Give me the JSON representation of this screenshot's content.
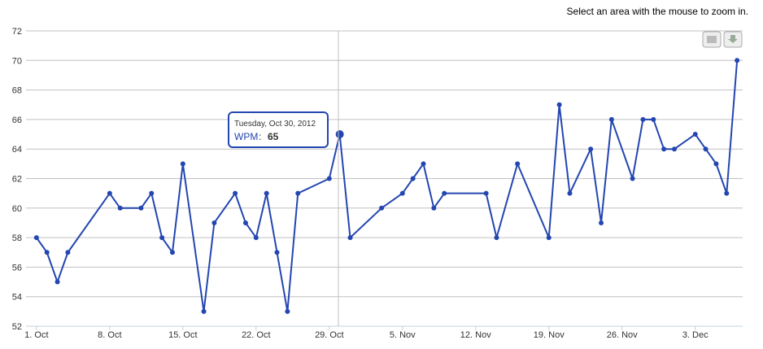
{
  "chart_data": {
    "type": "line",
    "subtitle": "Select an area with the mouse to zoom in.",
    "x": [
      "2012-10-01",
      "2012-10-02",
      "2012-10-03",
      "2012-10-04",
      "2012-10-08",
      "2012-10-09",
      "2012-10-11",
      "2012-10-12",
      "2012-10-13",
      "2012-10-14",
      "2012-10-15",
      "2012-10-17",
      "2012-10-18",
      "2012-10-20",
      "2012-10-21",
      "2012-10-22",
      "2012-10-23",
      "2012-10-24",
      "2012-10-25",
      "2012-10-26",
      "2012-10-29",
      "2012-10-30",
      "2012-10-31",
      "2012-11-03",
      "2012-11-05",
      "2012-11-06",
      "2012-11-07",
      "2012-11-08",
      "2012-11-09",
      "2012-11-13",
      "2012-11-14",
      "2012-11-16",
      "2012-11-19",
      "2012-11-20",
      "2012-11-21",
      "2012-11-23",
      "2012-11-24",
      "2012-11-25",
      "2012-11-27",
      "2012-11-28",
      "2012-11-29",
      "2012-11-30",
      "2012-12-01",
      "2012-12-03",
      "2012-12-04",
      "2012-12-05",
      "2012-12-06",
      "2012-12-07"
    ],
    "series": [
      {
        "name": "WPM",
        "color": "#2346b0",
        "values": [
          58,
          57,
          55,
          57,
          61,
          60,
          60,
          61,
          58,
          57,
          63,
          53,
          59,
          61,
          59,
          58,
          61,
          57,
          53,
          61,
          62,
          65,
          58,
          60,
          61,
          62,
          63,
          60,
          61,
          61,
          58,
          63,
          58,
          67,
          61,
          64,
          59,
          66,
          62,
          66,
          66,
          64,
          64,
          65,
          64,
          63,
          61,
          70
        ]
      }
    ],
    "tooltip": {
      "title": "Tuesday, Oct 30, 2012"
    },
    "xlim": [
      "2012-09-30",
      "2012-12-08"
    ],
    "xticks": [
      {
        "value": "2012-10-01",
        "label": "1. Oct"
      },
      {
        "value": "2012-10-08",
        "label": "8. Oct"
      },
      {
        "value": "2012-10-15",
        "label": "15. Oct"
      },
      {
        "value": "2012-10-22",
        "label": "22. Oct"
      },
      {
        "value": "2012-10-29",
        "label": "29. Oct"
      },
      {
        "value": "2012-11-05",
        "label": "5. Nov"
      },
      {
        "value": "2012-11-12",
        "label": "12. Nov"
      },
      {
        "value": "2012-11-19",
        "label": "19. Nov"
      },
      {
        "value": "2012-11-26",
        "label": "26. Nov"
      },
      {
        "value": "2012-12-03",
        "label": "3. Dec"
      }
    ],
    "ylim": [
      52,
      72
    ],
    "yticks": [
      52,
      54,
      56,
      58,
      60,
      62,
      64,
      66,
      68,
      70,
      72
    ],
    "grid": true
  }
}
